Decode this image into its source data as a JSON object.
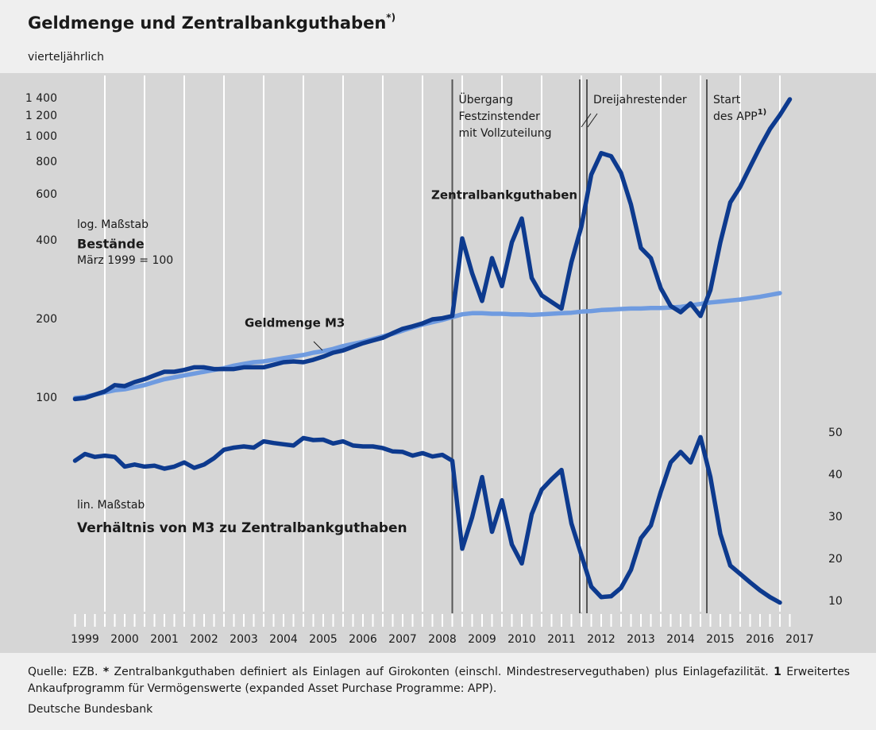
{
  "chart_data": {
    "type": "line",
    "title": "Geldmenge und Zentralbankguthaben",
    "title_note": "*)",
    "subtitle": "vierteljährlich",
    "upper_scale": "log. Maßstab",
    "upper_title": "Bestände",
    "upper_subtitle": "März 1999 = 100",
    "lower_scale": "lin. Maßstab",
    "log_scale": true,
    "xlim": [
      1999,
      2018
    ],
    "xticks": [
      {
        "value": 1999.5,
        "label": "1999"
      },
      {
        "value": 2000.5,
        "label": "2000"
      },
      {
        "value": 2001.5,
        "label": "2001"
      },
      {
        "value": 2002.5,
        "label": "2002"
      },
      {
        "value": 2003.5,
        "label": "2003"
      },
      {
        "value": 2004.5,
        "label": "2004"
      },
      {
        "value": 2005.5,
        "label": "2005"
      },
      {
        "value": 2006.5,
        "label": "2006"
      },
      {
        "value": 2007.5,
        "label": "2007"
      },
      {
        "value": 2008.5,
        "label": "2008"
      },
      {
        "value": 2009.5,
        "label": "2009"
      },
      {
        "value": 2010.5,
        "label": "2010"
      },
      {
        "value": 2011.5,
        "label": "2011"
      },
      {
        "value": 2012.5,
        "label": "2012"
      },
      {
        "value": 2013.5,
        "label": "2013"
      },
      {
        "value": 2014.5,
        "label": "2014"
      },
      {
        "value": 2015.5,
        "label": "2015"
      },
      {
        "value": 2016.5,
        "label": "2016"
      },
      {
        "value": 2017.5,
        "label": "2017"
      }
    ],
    "xgrid": [
      2000,
      2001,
      2002,
      2003,
      2004,
      2005,
      2006,
      2007,
      2008,
      2009,
      2010,
      2011,
      2012,
      2013,
      2014,
      2015,
      2016,
      2017
    ],
    "ylim": [
      100,
      1400
    ],
    "yticks": [
      100,
      200,
      400,
      600,
      800,
      {
        "value": 1000,
        "label": "1 000"
      },
      {
        "value": 1200,
        "label": "1 200"
      },
      {
        "value": 1400,
        "label": "1 400"
      }
    ],
    "y2lim": [
      10,
      50
    ],
    "y2ticks": [
      10,
      20,
      30,
      40,
      50
    ],
    "events": [
      {
        "x": [
          2008.75
        ],
        "label": [
          "Übergang",
          "Festzinstender",
          "mit Vollzuteilung"
        ]
      },
      {
        "x": [
          2011.96,
          2012.14
        ],
        "label": [
          "Dreijahrestender"
        ]
      },
      {
        "x": [
          2015.16
        ],
        "label": [
          "Start",
          "des APP"
        ],
        "note": "1)"
      }
    ],
    "x": [
      1999.25,
      1999.5,
      1999.75,
      2000,
      2000.25,
      2000.5,
      2000.75,
      2001,
      2001.25,
      2001.5,
      2001.75,
      2002,
      2002.25,
      2002.5,
      2002.75,
      2003,
      2003.25,
      2003.5,
      2003.75,
      2004,
      2004.25,
      2004.5,
      2004.75,
      2005,
      2005.25,
      2005.5,
      2005.75,
      2006,
      2006.25,
      2006.5,
      2006.75,
      2007,
      2007.25,
      2007.5,
      2007.75,
      2008,
      2008.25,
      2008.5,
      2008.75,
      2009,
      2009.25,
      2009.5,
      2009.75,
      2010,
      2010.25,
      2010.5,
      2010.75,
      2011,
      2011.25,
      2011.5,
      2011.75,
      2012,
      2012.25,
      2012.5,
      2012.75,
      2013,
      2013.25,
      2013.5,
      2013.75,
      2014,
      2014.25,
      2014.5,
      2014.75,
      2015,
      2015.25,
      2015.5,
      2015.75,
      2016,
      2016.25,
      2016.5,
      2016.75,
      2017,
      2017.25
    ],
    "series": [
      {
        "name": "Geldmenge M3",
        "color": "#6f9be0",
        "values": [
          100,
          101,
          103,
          105,
          107,
          108,
          110,
          112,
          115,
          118,
          120,
          122,
          124,
          126,
          128,
          130,
          133,
          135,
          137,
          138,
          140,
          142,
          144,
          146,
          149,
          151,
          154,
          158,
          161,
          164,
          168,
          172,
          176,
          181,
          186,
          191,
          195,
          199,
          204,
          209,
          211,
          211,
          210,
          210,
          209,
          209,
          208,
          209,
          210,
          211,
          212,
          214,
          215,
          217,
          218,
          219,
          220,
          220,
          221,
          221,
          222,
          223,
          226,
          229,
          232,
          234,
          236,
          238,
          241,
          244,
          248,
          252,
          null
        ]
      },
      {
        "name": "Zentralbankguthaben",
        "color": "#0d3a8e",
        "values": [
          99,
          100,
          103,
          106,
          112,
          111,
          115,
          118,
          122,
          126,
          126,
          128,
          131,
          131,
          129,
          129,
          129,
          131,
          131,
          131,
          134,
          137,
          138,
          137,
          140,
          144,
          149,
          152,
          157,
          162,
          166,
          170,
          177,
          184,
          188,
          193,
          200,
          202,
          206,
          408,
          300,
          235,
          343,
          268,
          394,
          486,
          288,
          247,
          233,
          220,
          331,
          453,
          716,
          865,
          842,
          726,
          549,
          375,
          343,
          263,
          225,
          213,
          230,
          206,
          259,
          394,
          560,
          643,
          767,
          913,
          1070,
          1210,
          1390
        ]
      },
      {
        "name": "Verhältnis von M3 zu Zentralbankguthaben",
        "color": "#0d3a8e",
        "axis": "y2",
        "values": [
          43.4,
          45,
          44.3,
          44.6,
          44.3,
          42,
          42.5,
          42,
          42.2,
          41.5,
          42,
          43,
          41.7,
          42.5,
          44,
          46,
          46.5,
          46.8,
          46.5,
          48,
          47.6,
          47.3,
          47,
          48.8,
          48.3,
          48.4,
          47.5,
          48,
          47,
          46.8,
          46.8,
          46.4,
          45.6,
          45.5,
          44.6,
          45.2,
          44.4,
          44.8,
          43.4,
          22.5,
          30,
          39.5,
          26.5,
          34,
          23.5,
          19,
          30.7,
          36.5,
          39,
          41.2,
          28.5,
          21,
          13.5,
          11,
          11.2,
          13.2,
          17.5,
          25,
          28,
          36,
          43,
          45.5,
          43,
          49,
          39.5,
          26,
          18.5,
          16.5,
          14.5,
          12.6,
          11,
          9.7,
          null
        ]
      }
    ]
  },
  "footer": {
    "source": "Quelle: EZB.",
    "notes": [
      {
        "mark": "*",
        "text": "Zentralbankguthaben definiert als Einlagen auf Girokonten (einschl. Mindestreserveguthaben) plus Einlagefazilität."
      },
      {
        "mark": "1",
        "text": "Erweitertes Ankaufprogramm für Vermögenswerte (expanded Asset Purchase Programme: APP)."
      }
    ],
    "publisher": "Deutsche Bundesbank"
  }
}
